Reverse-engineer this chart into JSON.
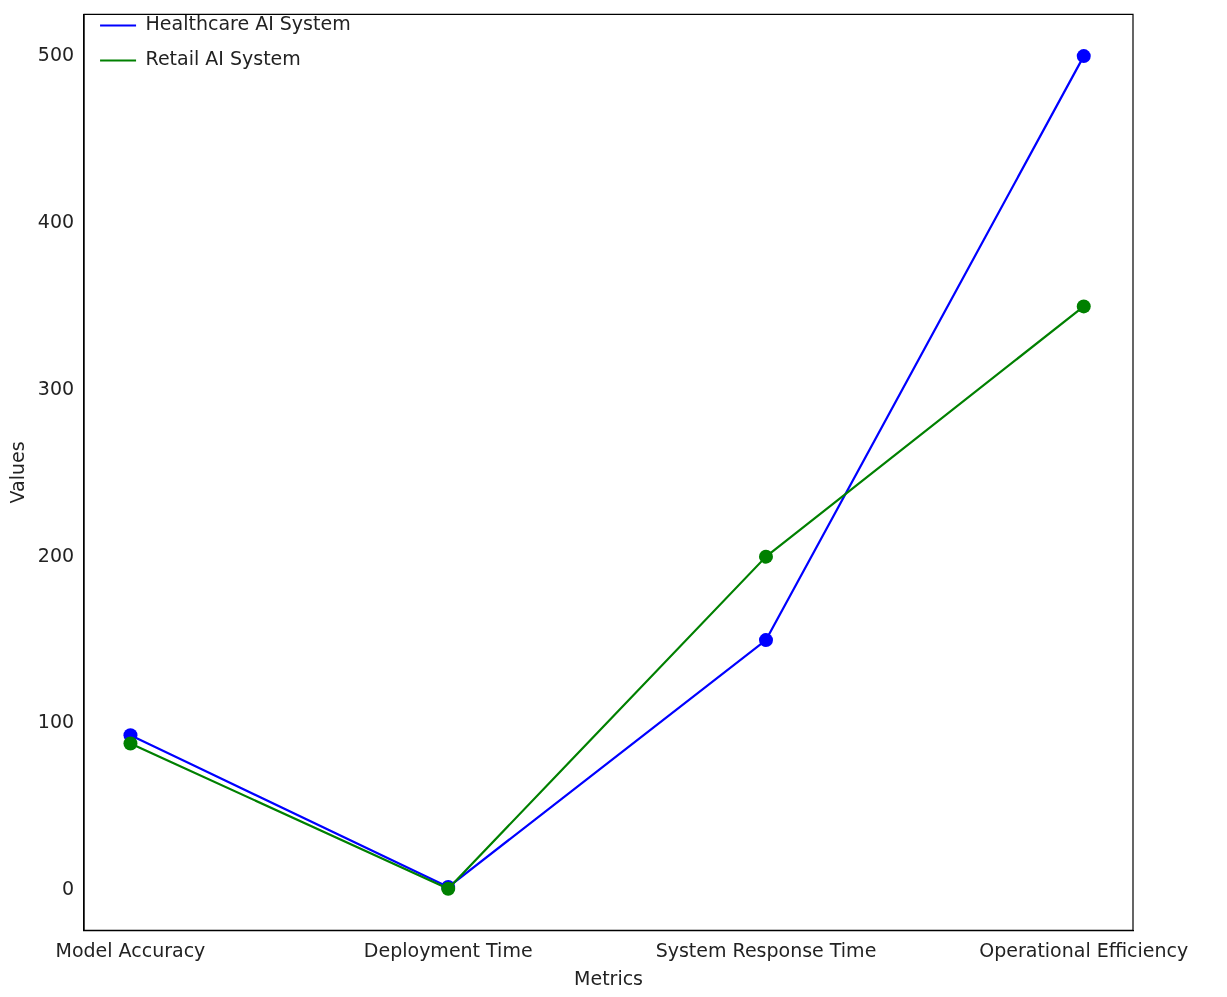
{
  "chart_data": {
    "type": "line",
    "xlabel": "Metrics",
    "ylabel": "Values",
    "categories": [
      "Model Accuracy",
      "Deployment Time",
      "System Response Time",
      "Operational Efficiency"
    ],
    "series": [
      {
        "name": "Healthcare AI System",
        "color": "#0000ff",
        "values": [
          93,
          2,
          150,
          500
        ]
      },
      {
        "name": "Retail AI System",
        "color": "#008000",
        "values": [
          88,
          1,
          200,
          350
        ]
      }
    ],
    "ylim": [
      -24,
      525
    ],
    "yticks": [
      0,
      100,
      200,
      300,
      400,
      500
    ],
    "grid": false,
    "legend": "top left",
    "marker": "circle",
    "line_style": "solid"
  }
}
